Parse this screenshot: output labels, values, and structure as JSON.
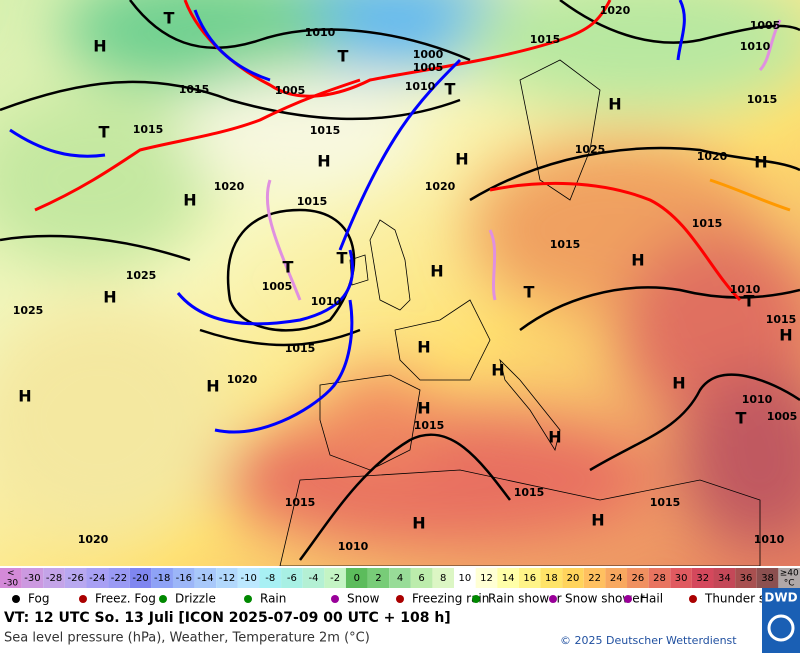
{
  "header": {
    "valid_time": "VT: 12 UTC So.  13 Juli [ICON 2025-07-09  00 UTC + 108 h]",
    "subtitle": "Sea level pressure (hPa), Weather, Temperature 2m (°C)",
    "copyright": "© 2025 Deutscher Wetterdienst",
    "logo": "DWD"
  },
  "colorbar": {
    "cells": [
      {
        "label": "<",
        "label2": "-30",
        "color": "#d48ad8"
      },
      {
        "label": -30,
        "color": "#cc99e0"
      },
      {
        "label": -28,
        "color": "#c4a4e8"
      },
      {
        "label": -26,
        "color": "#b8a8f0"
      },
      {
        "label": -24,
        "color": "#a8a0f4"
      },
      {
        "label": -22,
        "color": "#9a9af4"
      },
      {
        "label": -20,
        "color": "#7f86f0"
      },
      {
        "label": -18,
        "color": "#8ea2f6"
      },
      {
        "label": -16,
        "color": "#9cb6f8"
      },
      {
        "label": -14,
        "color": "#a8c8fa"
      },
      {
        "label": -12,
        "color": "#b2d8fc"
      },
      {
        "label": -10,
        "color": "#bce8ff"
      },
      {
        "label": -8,
        "color": "#a8f0f4"
      },
      {
        "label": -6,
        "color": "#a8f0e4"
      },
      {
        "label": -4,
        "color": "#b4f0d4"
      },
      {
        "label": -2,
        "color": "#c4f4c4"
      },
      {
        "label": 0,
        "color": "#5cbc5c"
      },
      {
        "label": 2,
        "color": "#78cc78"
      },
      {
        "label": 4,
        "color": "#98dc98"
      },
      {
        "label": 6,
        "color": "#bcecac"
      },
      {
        "label": 8,
        "color": "#dcf6c4"
      },
      {
        "label": 10,
        "color": "#ffffff"
      },
      {
        "label": 12,
        "color": "#ffffd4"
      },
      {
        "label": 14,
        "color": "#ffffa8"
      },
      {
        "label": 16,
        "color": "#fff488"
      },
      {
        "label": 18,
        "color": "#ffe468"
      },
      {
        "label": 20,
        "color": "#ffd45c"
      },
      {
        "label": 22,
        "color": "#ffc060"
      },
      {
        "label": 24,
        "color": "#f8a860"
      },
      {
        "label": 26,
        "color": "#f09060"
      },
      {
        "label": 28,
        "color": "#e87460"
      },
      {
        "label": 30,
        "color": "#e05a60"
      },
      {
        "label": 32,
        "color": "#d4485c"
      },
      {
        "label": 34,
        "color": "#c44858"
      },
      {
        "label": 36,
        "color": "#a85050"
      },
      {
        "label": 38,
        "color": "#8c5050"
      },
      {
        "label": "≥40",
        "label2": "°C",
        "color": "#b0a8a8"
      }
    ]
  },
  "legend": [
    "Fog",
    "Freez. Fog",
    "Drizzle",
    "Rain",
    "Snow",
    "Freezing rain",
    "Rain shower",
    "Snow shower",
    "Hail",
    "Thunder storm"
  ],
  "map": {
    "pressure_labels": [
      "1010",
      "1015",
      "1005",
      "1015",
      "1015",
      "1000",
      "1005",
      "1015",
      "1010",
      "1020",
      "1005",
      "1010",
      "1015",
      "1025",
      "1020",
      "1020",
      "1020",
      "1015",
      "1025",
      "1025",
      "1005",
      "1010",
      "1015",
      "1015",
      "1010",
      "1015",
      "1015",
      "1020",
      "1015",
      "1010",
      "1005",
      "1015",
      "1015",
      "1015",
      "1020",
      "1010",
      "1010"
    ],
    "system_labels": [
      "H",
      "T",
      "H",
      "H",
      "H",
      "H",
      "T",
      "T",
      "H",
      "H",
      "H",
      "T",
      "T",
      "T",
      "H",
      "H",
      "H",
      "T",
      "H",
      "H",
      "T",
      "T",
      "H",
      "H",
      "H",
      "H",
      "H",
      "H"
    ]
  }
}
